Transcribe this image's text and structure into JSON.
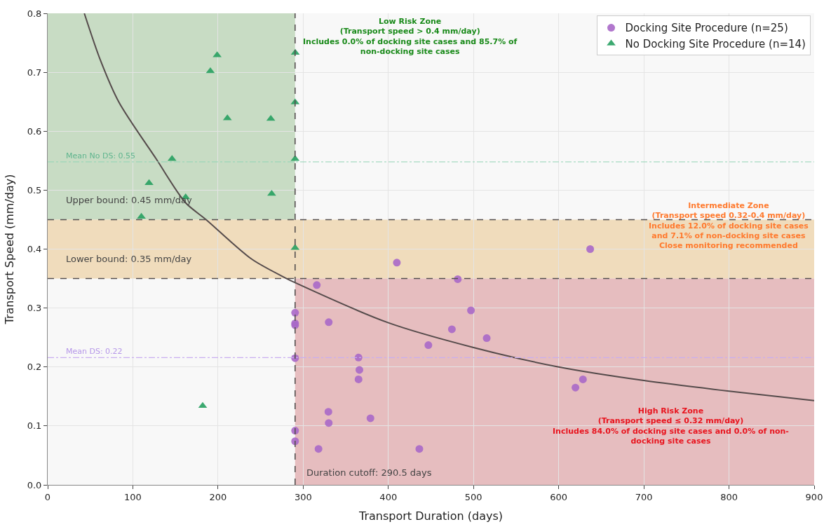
{
  "chart_data": {
    "type": "scatter",
    "xlabel": "Transport Duration (days)",
    "ylabel": "Transport Speed (mm/day)",
    "xlim": [
      0,
      900
    ],
    "ylim": [
      0,
      0.8
    ],
    "xticks": [
      0,
      100,
      200,
      300,
      400,
      500,
      600,
      700,
      800,
      900
    ],
    "yticks": [
      {
        "value": 0,
        "label": "0.0"
      },
      {
        "value": 0.1,
        "label": "0.1"
      },
      {
        "value": 0.2,
        "label": "0.2"
      },
      {
        "value": 0.3,
        "label": "0.3"
      },
      {
        "value": 0.4,
        "label": "0.4"
      },
      {
        "value": 0.5,
        "label": "0.5"
      },
      {
        "value": 0.6,
        "label": "0.6"
      },
      {
        "value": 0.7,
        "label": "0.7"
      },
      {
        "value": 0.8,
        "label": "0.8"
      }
    ],
    "grid": true,
    "legend": "top right",
    "series": [
      {
        "name": "Docking Site Procedure (n=25)",
        "marker": "circle",
        "color": "#a968c8",
        "x": [
          410,
          637,
          481.5,
          316,
          290.5,
          290.5,
          290.5,
          330,
          497,
          474.6,
          515.5,
          447,
          290.5,
          365,
          366,
          365,
          628.5,
          619.7,
          329.6,
          379,
          330,
          290.5,
          290.5,
          318,
          436.4
        ],
        "values": [
          0.377,
          0.4,
          0.349,
          0.339,
          0.292,
          0.274,
          0.271,
          0.276,
          0.296,
          0.264,
          0.249,
          0.237,
          0.215,
          0.216,
          0.195,
          0.179,
          0.179,
          0.165,
          0.124,
          0.113,
          0.105,
          0.092,
          0.074,
          0.061,
          0.061
        ]
      },
      {
        "name": "No Docking Site Procedure (n=14)",
        "marker": "triangle",
        "color": "#27a061",
        "x": [
          199,
          290.7,
          191,
          290.5,
          211,
          262,
          146,
          290.5,
          119,
          162,
          263,
          110,
          290.5,
          182
        ],
        "values": [
          0.729,
          0.733,
          0.702,
          0.649,
          0.622,
          0.621,
          0.553,
          0.553,
          0.512,
          0.488,
          0.494,
          0.455,
          0.402,
          0.134
        ]
      },
      {
        "type": "line",
        "marker": "none",
        "color": "#554b4b",
        "x": [
          43,
          61.5,
          83.7,
          127.4,
          161.6,
          186,
          239.5,
          280.6,
          290.5,
          400,
          500,
          600,
          700,
          800,
          900
        ],
        "values": [
          0.8,
          0.722,
          0.649,
          0.553,
          0.479,
          0.45,
          0.383,
          0.35,
          0.343,
          0.275,
          0.233,
          0.2,
          0.177,
          0.159,
          0.143
        ]
      }
    ],
    "bands": [
      {
        "axis": "y",
        "from": 0.45,
        "to": 0.8,
        "color": "#c8dcc4"
      },
      {
        "axis": "y",
        "from": 0.35,
        "to": 0.45,
        "color": "#f0dcbc"
      },
      {
        "axis": "y",
        "from": 0,
        "to": 0.35,
        "color": "#e6bdbf"
      }
    ],
    "ref_lines": [
      {
        "axis": "y",
        "value": 0.45,
        "label": "Upper bound: 0.45 mm/day",
        "color": "#555050",
        "line_style": "dashed"
      },
      {
        "axis": "y",
        "value": 0.35,
        "label": "Lower bound: 0.35 mm/day",
        "color": "#555050",
        "line_style": "dashed"
      },
      {
        "axis": "x",
        "value": 290.5,
        "label": "Duration cutoff: 290.5 days",
        "color": "#555050",
        "line_style": "dashed"
      },
      {
        "axis": "y",
        "value": 0.548,
        "label": "Mean No DS: 0.55",
        "color": "#8fd4b4",
        "line_style": "dashdot"
      },
      {
        "axis": "y",
        "value": 0.216,
        "label": "Mean DS: 0.22",
        "color": "#c9aef0",
        "line_style": "dashdot"
      }
    ],
    "annotations": [
      "Low Risk Zone\n(Transport speed > 0.4 mm/day)\nIncludes 0.0% of docking site cases and 85.7% of\nnon-docking site cases",
      "Intermediate Zone\n(Transport speed 0.32-0.4 mm/day)\nIncludes 12.0% of docking site cases\nand 7.1% of non-docking site cases\nClose monitoring recommended",
      "High Risk Zone\n(Transport speed ≤ 0.32 mm/day)\nIncludes 84.0% of docking site cases and 0.0% of non-\ndocking site cases"
    ]
  }
}
